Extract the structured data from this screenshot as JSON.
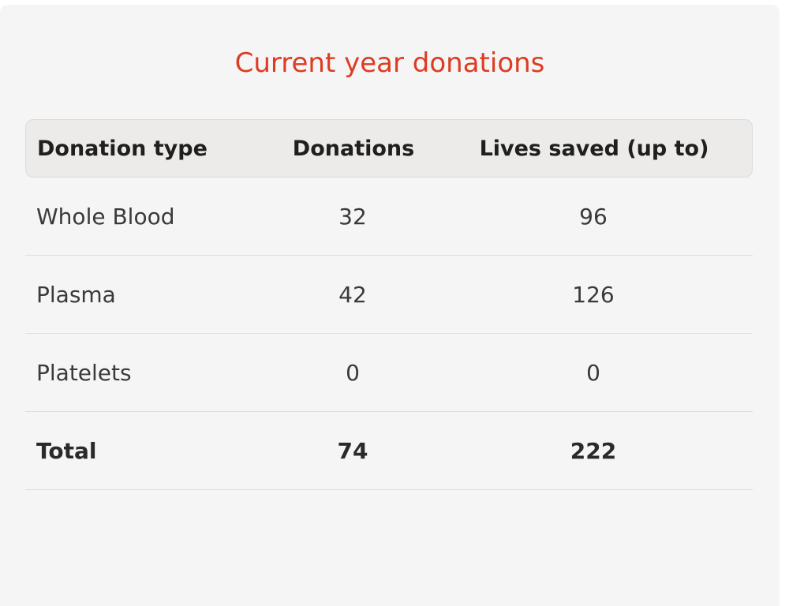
{
  "card": {
    "title": "Current year donations"
  },
  "table": {
    "headers": [
      "Donation type",
      "Donations",
      "Lives saved (up to)"
    ],
    "rows": [
      [
        "Whole Blood",
        "32",
        "96"
      ],
      [
        "Plasma",
        "42",
        "126"
      ],
      [
        "Platelets",
        "0",
        "0"
      ]
    ],
    "total": [
      "Total",
      "74",
      "222"
    ]
  }
}
